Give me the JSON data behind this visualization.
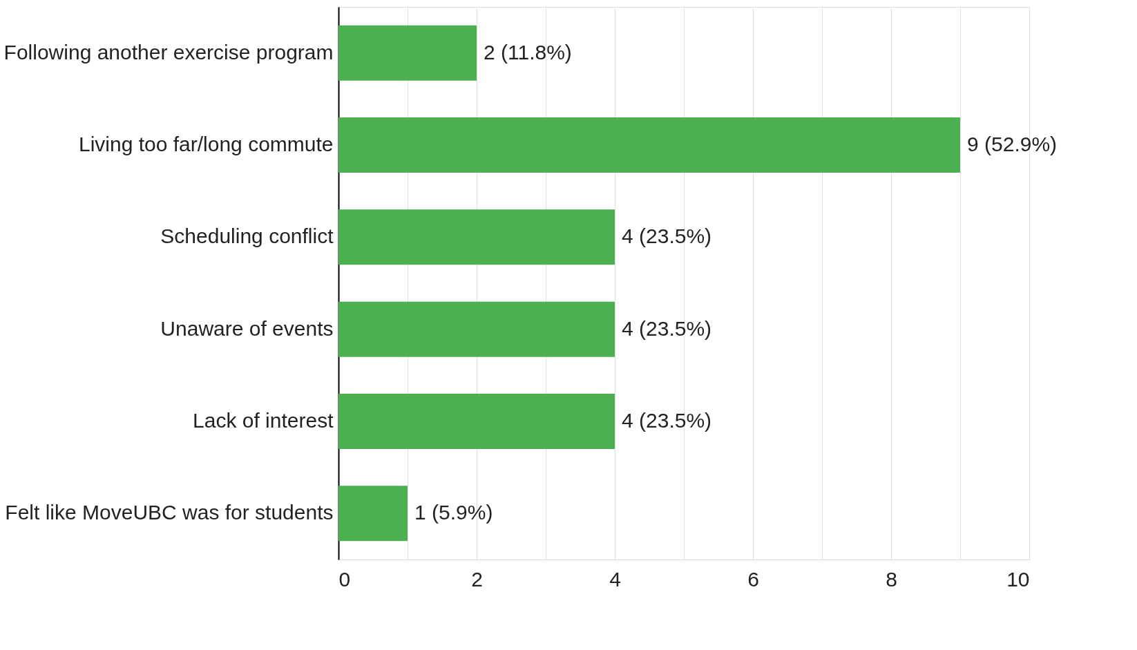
{
  "chart_data": {
    "type": "bar",
    "orientation": "horizontal",
    "categories": [
      "Following another exercise program",
      "Living too far/long commute",
      "Scheduling conflict",
      "Unaware of events",
      "Lack of interest",
      "Felt like MoveUBC was for students"
    ],
    "values": [
      2,
      9,
      4,
      4,
      4,
      1
    ],
    "value_labels": [
      "2 (11.8%)",
      "9 (52.9%)",
      "4 (23.5%)",
      "4 (23.5%)",
      "4 (23.5%)",
      "1 (5.9%)"
    ],
    "color": "#4caf50",
    "xlim": [
      0,
      10
    ],
    "xticks": [
      0,
      {
        "value": 1,
        "label": null
      },
      2,
      {
        "value": 3,
        "label": null
      },
      4,
      {
        "value": 5,
        "label": null
      },
      6,
      {
        "value": 7,
        "label": null
      },
      8,
      {
        "value": 9,
        "label": null
      },
      10
    ],
    "grid": "x"
  }
}
